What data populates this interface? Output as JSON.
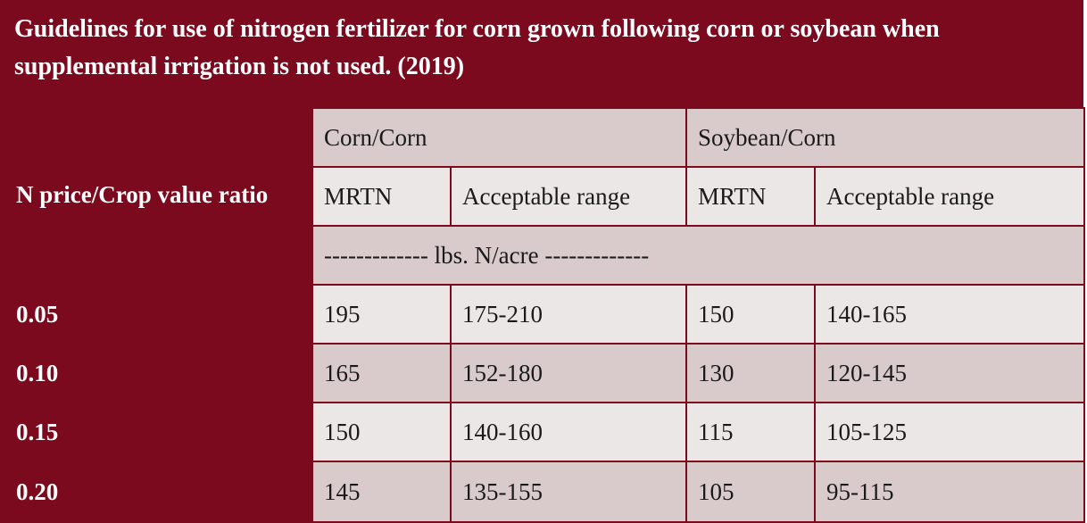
{
  "title": "Guidelines for use of nitrogen fertilizer for corn grown following corn or soybean when supplemental irrigation is not used. (2019)",
  "table": {
    "groups": [
      "Corn/Corn",
      "Soybean/Corn"
    ],
    "row_label_header": "N price/Crop value ratio",
    "subheaders": [
      "MRTN",
      "Acceptable range",
      "MRTN",
      "Acceptable range"
    ],
    "units": "------------- lbs. N/acre -------------",
    "rows": [
      [
        "0.05",
        "195",
        "175-210",
        "150",
        "140-165"
      ],
      [
        "0.10",
        "165",
        "152-180",
        "130",
        "120-145"
      ],
      [
        "0.15",
        "150",
        "140-160",
        "115",
        "105-125"
      ],
      [
        "0.20",
        "145",
        "135-155",
        "105",
        "95-115"
      ]
    ]
  }
}
